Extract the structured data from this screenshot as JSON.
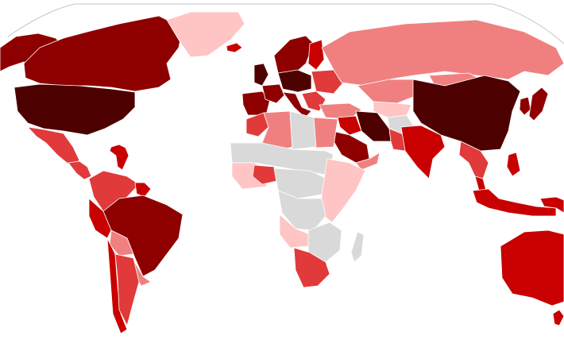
{
  "map": {
    "type": "choropleth",
    "projection": "robinson-like",
    "background": "#ffffff",
    "border_color": "#ffffff",
    "frame_color": "#cfcfcf",
    "no_data_color": "#d9d9d9",
    "levels": [
      "#ffc4c4",
      "#f08080",
      "#e03a3a",
      "#c80000",
      "#8e0000",
      "#4d0000"
    ]
  },
  "regions": [
    {
      "name": "alaska",
      "level": 4
    },
    {
      "name": "canada",
      "level": 4
    },
    {
      "name": "greenland",
      "level": 0
    },
    {
      "name": "iceland",
      "level": 3
    },
    {
      "name": "united-states",
      "level": 5
    },
    {
      "name": "mexico",
      "level": 2
    },
    {
      "name": "central-america",
      "level": 2
    },
    {
      "name": "caribbean",
      "level": 3
    },
    {
      "name": "colombia-venezuela",
      "level": 2
    },
    {
      "name": "guianas",
      "level": 3
    },
    {
      "name": "brazil",
      "level": 4
    },
    {
      "name": "peru",
      "level": 3
    },
    {
      "name": "bolivia",
      "level": 1
    },
    {
      "name": "paraguay-uruguay",
      "level": 1
    },
    {
      "name": "chile",
      "level": 3
    },
    {
      "name": "argentina",
      "level": 2
    },
    {
      "name": "norway-sweden",
      "level": 4
    },
    {
      "name": "finland",
      "level": 3
    },
    {
      "name": "united-kingdom",
      "level": 5
    },
    {
      "name": "iberia",
      "level": 4
    },
    {
      "name": "france",
      "level": 4
    },
    {
      "name": "central-europe",
      "level": 5
    },
    {
      "name": "italy",
      "level": 4
    },
    {
      "name": "eastern-europe",
      "level": 2
    },
    {
      "name": "balkans",
      "level": 2
    },
    {
      "name": "turkey",
      "level": 1
    },
    {
      "name": "russia",
      "level": 1
    },
    {
      "name": "kazakhstan",
      "level": 1
    },
    {
      "name": "mongolia",
      "level": 1
    },
    {
      "name": "central-asia",
      "level": 0
    },
    {
      "name": "afghanistan",
      "level": -1
    },
    {
      "name": "iran",
      "level": 5
    },
    {
      "name": "iraq-syria",
      "level": 3
    },
    {
      "name": "saudi-arabia",
      "level": 4
    },
    {
      "name": "yemen-oman",
      "level": 1
    },
    {
      "name": "pakistan",
      "level": 2
    },
    {
      "name": "india",
      "level": 3
    },
    {
      "name": "china",
      "level": 5
    },
    {
      "name": "korea",
      "level": 4
    },
    {
      "name": "japan",
      "level": 4
    },
    {
      "name": "mainland-southeast-asia",
      "level": 2
    },
    {
      "name": "malaysia",
      "level": 3
    },
    {
      "name": "philippines",
      "level": 3
    },
    {
      "name": "indonesia",
      "level": 3
    },
    {
      "name": "papua-new-guinea",
      "level": 3
    },
    {
      "name": "australia",
      "level": 3
    },
    {
      "name": "new-zealand",
      "level": 3
    },
    {
      "name": "morocco",
      "level": 2
    },
    {
      "name": "algeria",
      "level": 1
    },
    {
      "name": "libya",
      "level": -1
    },
    {
      "name": "egypt",
      "level": 1
    },
    {
      "name": "sahel",
      "level": -1
    },
    {
      "name": "west-africa",
      "level": 0
    },
    {
      "name": "nigeria",
      "level": 2
    },
    {
      "name": "central-africa",
      "level": -1
    },
    {
      "name": "east-africa",
      "level": 0
    },
    {
      "name": "congo",
      "level": -1
    },
    {
      "name": "angola",
      "level": 0
    },
    {
      "name": "southern-africa",
      "level": -1
    },
    {
      "name": "south-africa",
      "level": 2
    },
    {
      "name": "madagascar",
      "level": -1
    }
  ]
}
